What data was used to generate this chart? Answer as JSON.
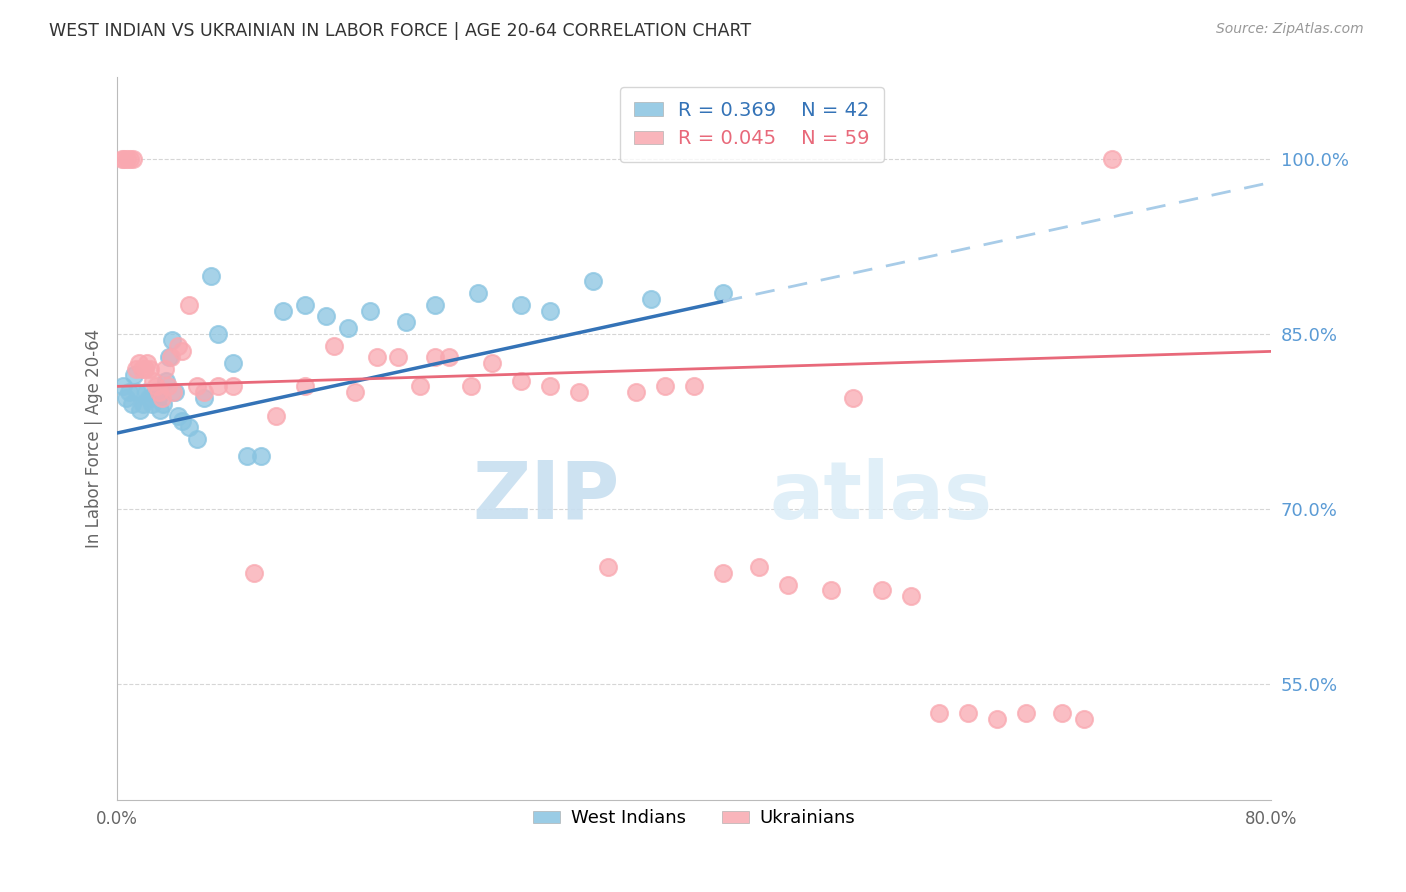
{
  "title": "WEST INDIAN VS UKRAINIAN IN LABOR FORCE | AGE 20-64 CORRELATION CHART",
  "source": "Source: ZipAtlas.com",
  "ylabel": "In Labor Force | Age 20-64",
  "xlim": [
    0.0,
    80.0
  ],
  "ylim": [
    45.0,
    107.0
  ],
  "yticks": [
    55.0,
    70.0,
    85.0,
    100.0
  ],
  "background_color": "#ffffff",
  "grid_color": "#cccccc",
  "west_indian_color": "#89c4e1",
  "ukrainian_color": "#f9a8b0",
  "trend_blue_color": "#3473b7",
  "trend_pink_color": "#e8697a",
  "dashed_line_color": "#a8cce8",
  "watermark_zip": "ZIP",
  "watermark_atlas": "atlas",
  "watermark_color": "#ddeef8",
  "west_indians_x": [
    0.4,
    0.6,
    0.8,
    1.0,
    1.2,
    1.4,
    1.6,
    1.8,
    2.0,
    2.2,
    2.4,
    2.6,
    2.8,
    3.0,
    3.2,
    3.4,
    3.6,
    3.8,
    4.0,
    4.2,
    4.5,
    5.0,
    5.5,
    6.0,
    6.5,
    7.0,
    8.0,
    9.0,
    10.0,
    11.5,
    13.0,
    14.5,
    16.0,
    17.5,
    20.0,
    22.0,
    25.0,
    28.0,
    30.0,
    33.0,
    37.0,
    42.0
  ],
  "west_indians_y": [
    80.5,
    79.5,
    80.0,
    79.0,
    81.5,
    80.0,
    78.5,
    79.0,
    80.0,
    79.5,
    79.0,
    80.0,
    79.5,
    78.5,
    79.0,
    81.0,
    83.0,
    84.5,
    80.0,
    78.0,
    77.5,
    77.0,
    76.0,
    79.5,
    90.0,
    85.0,
    82.5,
    74.5,
    74.5,
    87.0,
    87.5,
    86.5,
    85.5,
    87.0,
    86.0,
    87.5,
    88.5,
    87.5,
    87.0,
    89.5,
    88.0,
    88.5
  ],
  "ukrainians_x": [
    0.3,
    0.5,
    0.7,
    0.9,
    1.1,
    1.3,
    1.5,
    1.7,
    1.9,
    2.1,
    2.3,
    2.5,
    2.7,
    2.9,
    3.1,
    3.3,
    3.5,
    3.7,
    3.9,
    4.2,
    4.5,
    5.0,
    5.5,
    6.0,
    7.0,
    8.0,
    9.5,
    11.0,
    13.0,
    15.0,
    16.5,
    18.0,
    19.5,
    21.0,
    22.0,
    23.0,
    24.5,
    26.0,
    28.0,
    30.0,
    32.0,
    34.0,
    36.0,
    38.0,
    40.0,
    42.0,
    44.5,
    46.5,
    49.5,
    51.0,
    53.0,
    55.0,
    57.0,
    59.0,
    61.0,
    63.0,
    65.5,
    67.0,
    69.0
  ],
  "ukrainians_y": [
    100.0,
    100.0,
    100.0,
    100.0,
    100.0,
    82.0,
    82.5,
    82.0,
    82.0,
    82.5,
    82.0,
    81.0,
    80.5,
    80.0,
    79.5,
    82.0,
    80.5,
    83.0,
    80.0,
    84.0,
    83.5,
    87.5,
    80.5,
    80.0,
    80.5,
    80.5,
    64.5,
    78.0,
    80.5,
    84.0,
    80.0,
    83.0,
    83.0,
    80.5,
    83.0,
    83.0,
    80.5,
    82.5,
    81.0,
    80.5,
    80.0,
    65.0,
    80.0,
    80.5,
    80.5,
    64.5,
    65.0,
    63.5,
    63.0,
    79.5,
    63.0,
    62.5,
    52.5,
    52.5,
    52.0,
    52.5,
    52.5,
    52.0,
    100.0
  ],
  "wi_trend_x0": 0.0,
  "wi_trend_y0": 76.5,
  "wi_trend_x1": 80.0,
  "wi_trend_y1": 98.0,
  "wi_solid_end": 42.0,
  "uk_trend_x0": 0.0,
  "uk_trend_y0": 80.5,
  "uk_trend_x1": 80.0,
  "uk_trend_y1": 83.5
}
